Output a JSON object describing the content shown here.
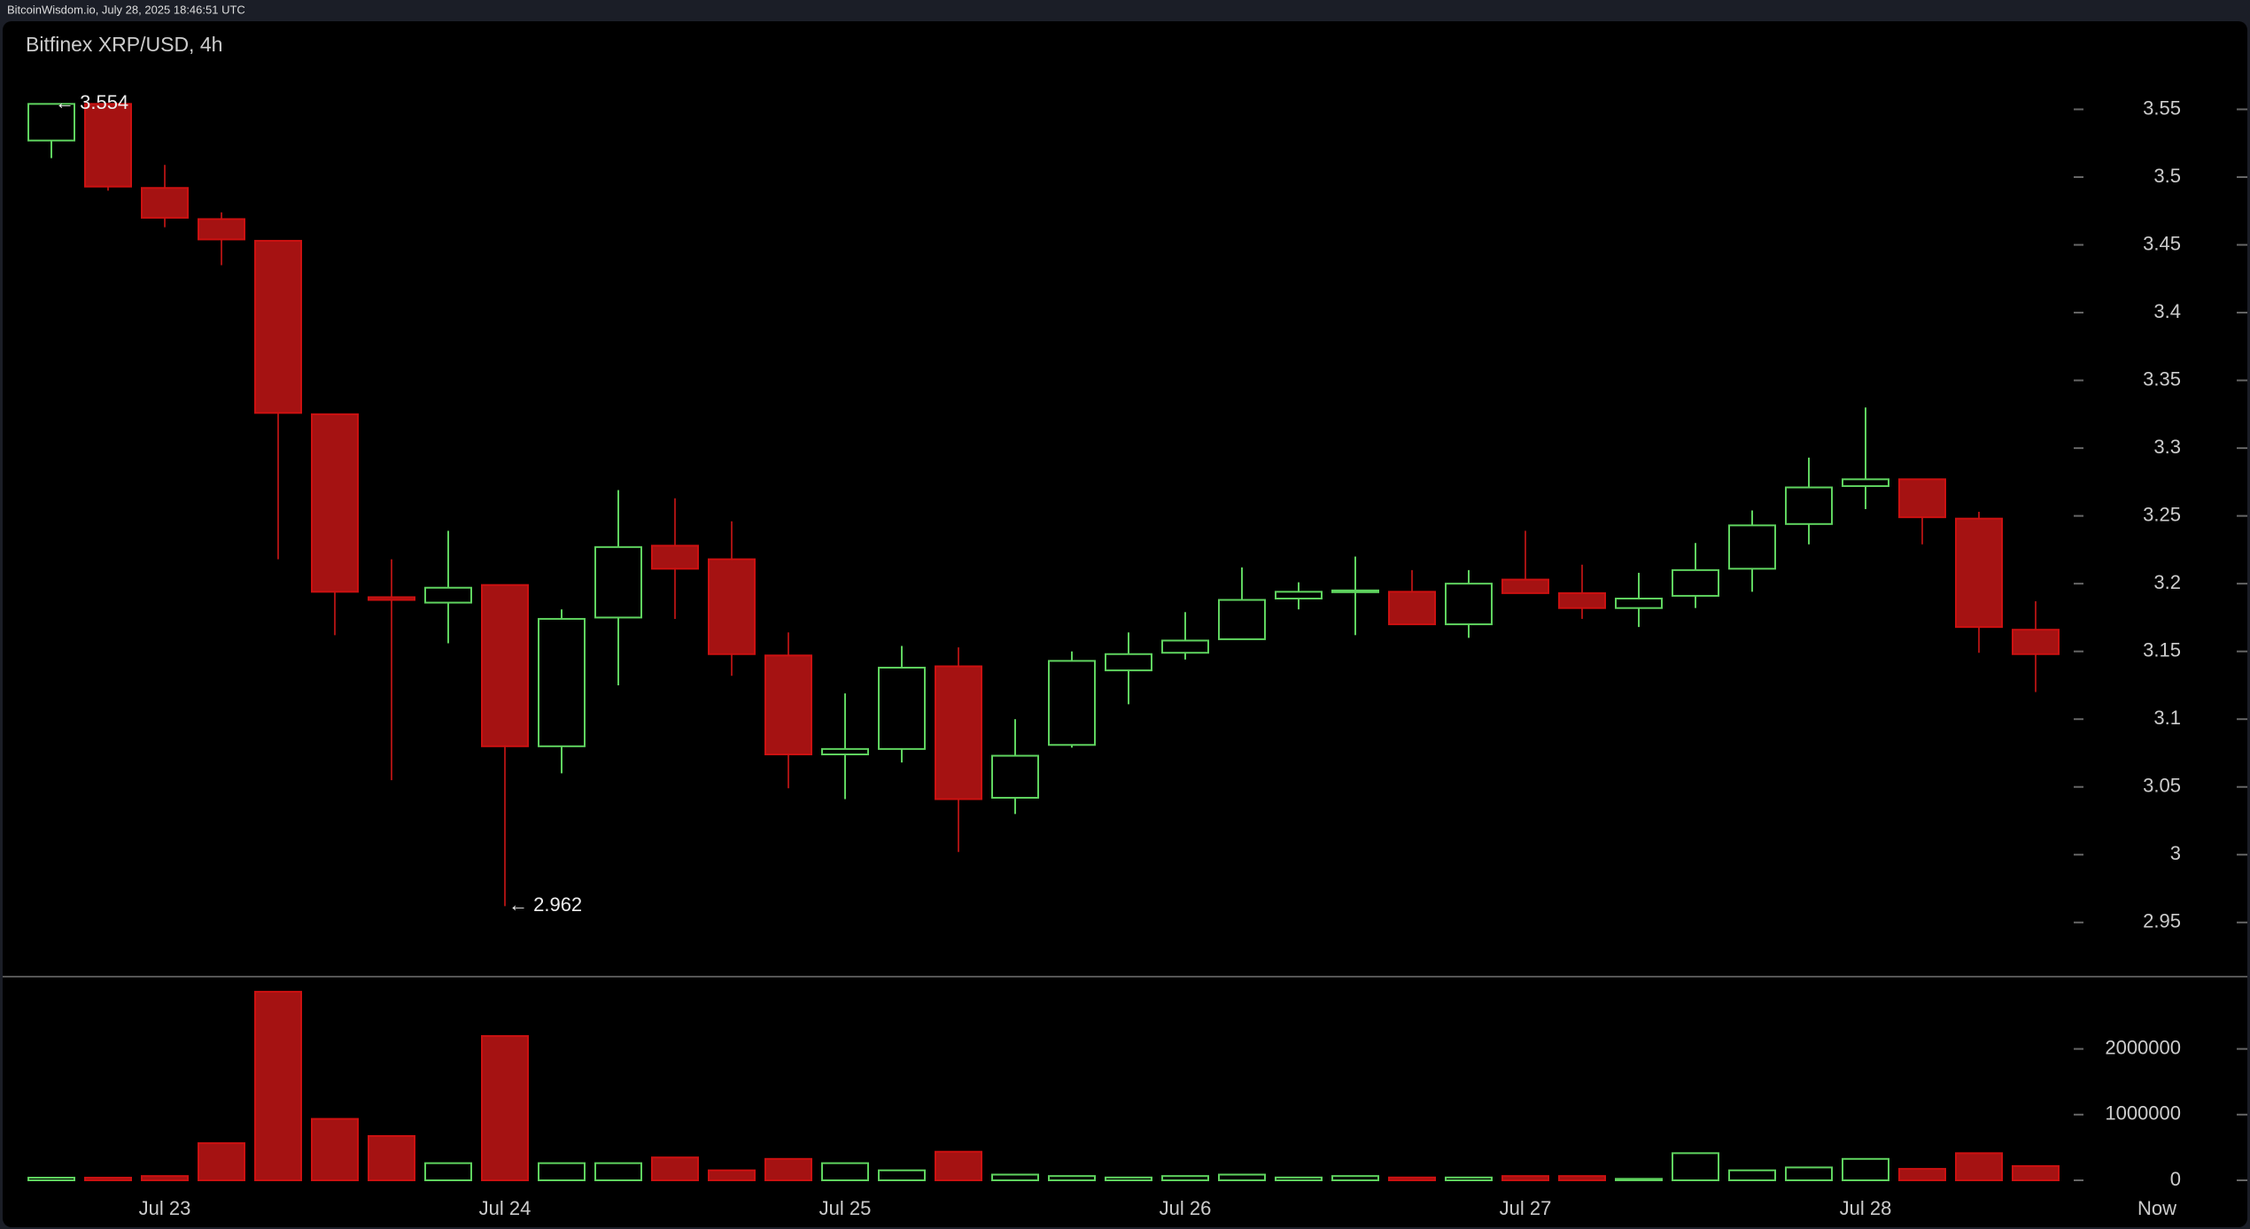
{
  "header": {
    "source": "BitcoinWisdom.io, July 28, 2025 18:46:51 UTC"
  },
  "chart_data": {
    "type": "candlestick",
    "title": "Bitfinex XRP/USD, 4h",
    "categories": [
      null,
      null,
      "Jul 23",
      null,
      null,
      null,
      null,
      null,
      "Jul 24",
      null,
      null,
      null,
      null,
      null,
      "Jul 25",
      null,
      null,
      null,
      null,
      null,
      "Jul 26",
      null,
      null,
      null,
      null,
      null,
      "Jul 27",
      null,
      null,
      null,
      null,
      null,
      "Jul 28",
      null,
      null,
      null
    ],
    "now_label": "Now",
    "open": [
      3.527,
      3.554,
      3.492,
      3.469,
      3.453,
      3.325,
      3.19,
      3.186,
      3.199,
      3.08,
      3.175,
      3.228,
      3.218,
      3.147,
      3.074,
      3.078,
      3.139,
      3.042,
      3.081,
      3.136,
      3.149,
      3.159,
      3.189,
      3.194,
      3.194,
      3.17,
      3.203,
      3.193,
      3.182,
      3.191,
      3.211,
      3.244,
      3.272,
      3.277,
      3.248,
      3.166
    ],
    "high": [
      3.554,
      3.554,
      3.509,
      3.474,
      3.453,
      3.325,
      3.218,
      3.239,
      3.199,
      3.181,
      3.269,
      3.263,
      3.246,
      3.164,
      3.119,
      3.154,
      3.153,
      3.1,
      3.15,
      3.164,
      3.179,
      3.212,
      3.201,
      3.22,
      3.21,
      3.21,
      3.239,
      3.214,
      3.208,
      3.23,
      3.254,
      3.293,
      3.33,
      3.277,
      3.253,
      3.187
    ],
    "low": [
      3.514,
      3.49,
      3.463,
      3.435,
      3.218,
      3.162,
      3.055,
      3.156,
      2.962,
      3.06,
      3.125,
      3.174,
      3.132,
      3.049,
      3.041,
      3.068,
      3.002,
      3.03,
      3.079,
      3.111,
      3.144,
      3.159,
      3.181,
      3.162,
      3.17,
      3.16,
      3.193,
      3.174,
      3.168,
      3.182,
      3.194,
      3.229,
      3.255,
      3.229,
      3.149,
      3.12
    ],
    "close": [
      3.554,
      3.493,
      3.47,
      3.454,
      3.326,
      3.194,
      3.188,
      3.197,
      3.08,
      3.174,
      3.227,
      3.211,
      3.148,
      3.074,
      3.078,
      3.138,
      3.041,
      3.073,
      3.143,
      3.148,
      3.158,
      3.188,
      3.194,
      3.195,
      3.17,
      3.2,
      3.193,
      3.182,
      3.189,
      3.21,
      3.243,
      3.271,
      3.277,
      3.249,
      3.168,
      3.148
    ],
    "volume": [
      40000,
      40000,
      65000,
      565000,
      2870000,
      935000,
      674000,
      261000,
      2196000,
      261000,
      261000,
      348000,
      152000,
      326000,
      261000,
      152000,
      435000,
      87000,
      65000,
      43000,
      65000,
      87000,
      43000,
      65000,
      43000,
      43000,
      65000,
      65000,
      22000,
      413000,
      152000,
      196000,
      326000,
      174000,
      413000,
      217000
    ],
    "up_color": "#5fd35f",
    "down_color": "#a51212",
    "ylim": [
      2.91,
      3.615
    ],
    "yticks": [
      2.95,
      3,
      3.05,
      3.1,
      3.15,
      3.2,
      3.25,
      3.3,
      3.35,
      3.4,
      3.45,
      3.5,
      3.55
    ],
    "volume_ylim": [
      0,
      3100000
    ],
    "volume_yticks": [
      0,
      1000000,
      2000000
    ],
    "annotations": [
      {
        "text": "← 3.554",
        "index": 0,
        "value": 3.554
      },
      {
        "text": "← 2.962",
        "index": 8,
        "value": 2.962
      }
    ]
  }
}
